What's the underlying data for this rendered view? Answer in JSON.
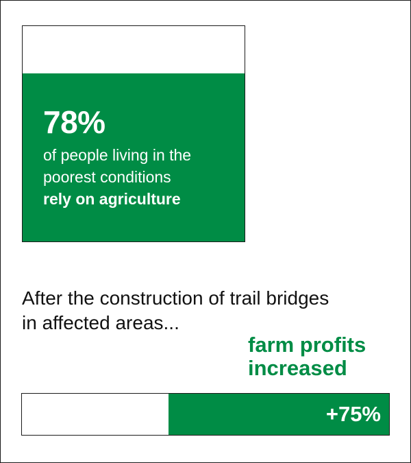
{
  "stat_card": {
    "value": "78%",
    "line1": "of people living in the",
    "line2": "poorest conditions",
    "line3": "rely on agriculture",
    "fill_fraction": 0.78
  },
  "headline": {
    "line1": "After the construction of trail bridges",
    "line2": "in affected areas..."
  },
  "annotation": {
    "line1": "farm profits",
    "line2": "increased"
  },
  "colors": {
    "accent": "#008c45",
    "border": "#1a1a1a",
    "text": "#111111"
  },
  "chart_data": [
    {
      "type": "bar",
      "categories": [
        "rely on agriculture"
      ],
      "values": [
        78
      ],
      "unit": "%",
      "ylim": [
        0,
        100
      ]
    },
    {
      "type": "bar",
      "categories": [
        "farm profits increased"
      ],
      "values": [
        75
      ],
      "value_label": "+75%",
      "unit": "%",
      "ylim": [
        0,
        125
      ]
    }
  ]
}
